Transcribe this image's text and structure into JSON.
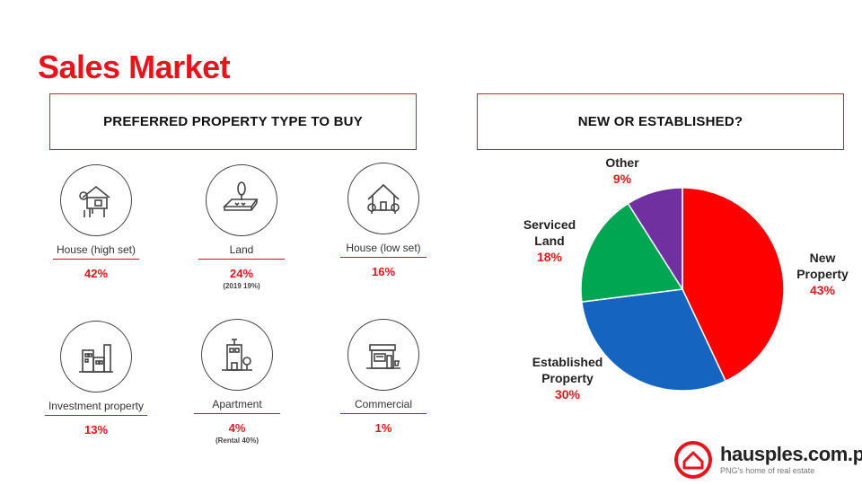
{
  "page": {
    "title": "Sales Market"
  },
  "left_panel": {
    "heading": "PREFERRED PROPERTY TYPE TO BUY",
    "items": [
      {
        "icon": "house-high-set-icon",
        "label": "House (high set)",
        "value": "42%",
        "note": ""
      },
      {
        "icon": "land-icon",
        "label": "Land",
        "value": "24%",
        "note": "(2019 19%)"
      },
      {
        "icon": "house-low-set-icon",
        "label": "House (low set)",
        "value": "16%",
        "note": ""
      },
      {
        "icon": "investment-property-icon",
        "label": "Investment property",
        "value": "13%",
        "note": ""
      },
      {
        "icon": "apartment-icon",
        "label": "Apartment",
        "value": "4%",
        "note": "(Rental 40%)"
      },
      {
        "icon": "commercial-icon",
        "label": "Commercial",
        "value": "1%",
        "note": ""
      }
    ]
  },
  "right_panel": {
    "heading": "NEW OR ESTABLISHED?"
  },
  "chart_data": {
    "type": "pie",
    "title": "NEW OR ESTABLISHED?",
    "start": "12 o'clock",
    "direction": "clockwise",
    "slices": [
      {
        "label": "New Property",
        "value": 43,
        "display": "43%",
        "color": "#ff0000"
      },
      {
        "label": "Established Property",
        "value": 30,
        "display": "30%",
        "color": "#1565c0"
      },
      {
        "label": "Serviced Land",
        "value": 18,
        "display": "18%",
        "color": "#00a651"
      },
      {
        "label": "Other",
        "value": 9,
        "display": "9%",
        "color": "#7030a0"
      }
    ]
  },
  "brand": {
    "name": "hausples.com.pg",
    "tagline": "PNG's home of real estate",
    "color": "#e8141b"
  }
}
